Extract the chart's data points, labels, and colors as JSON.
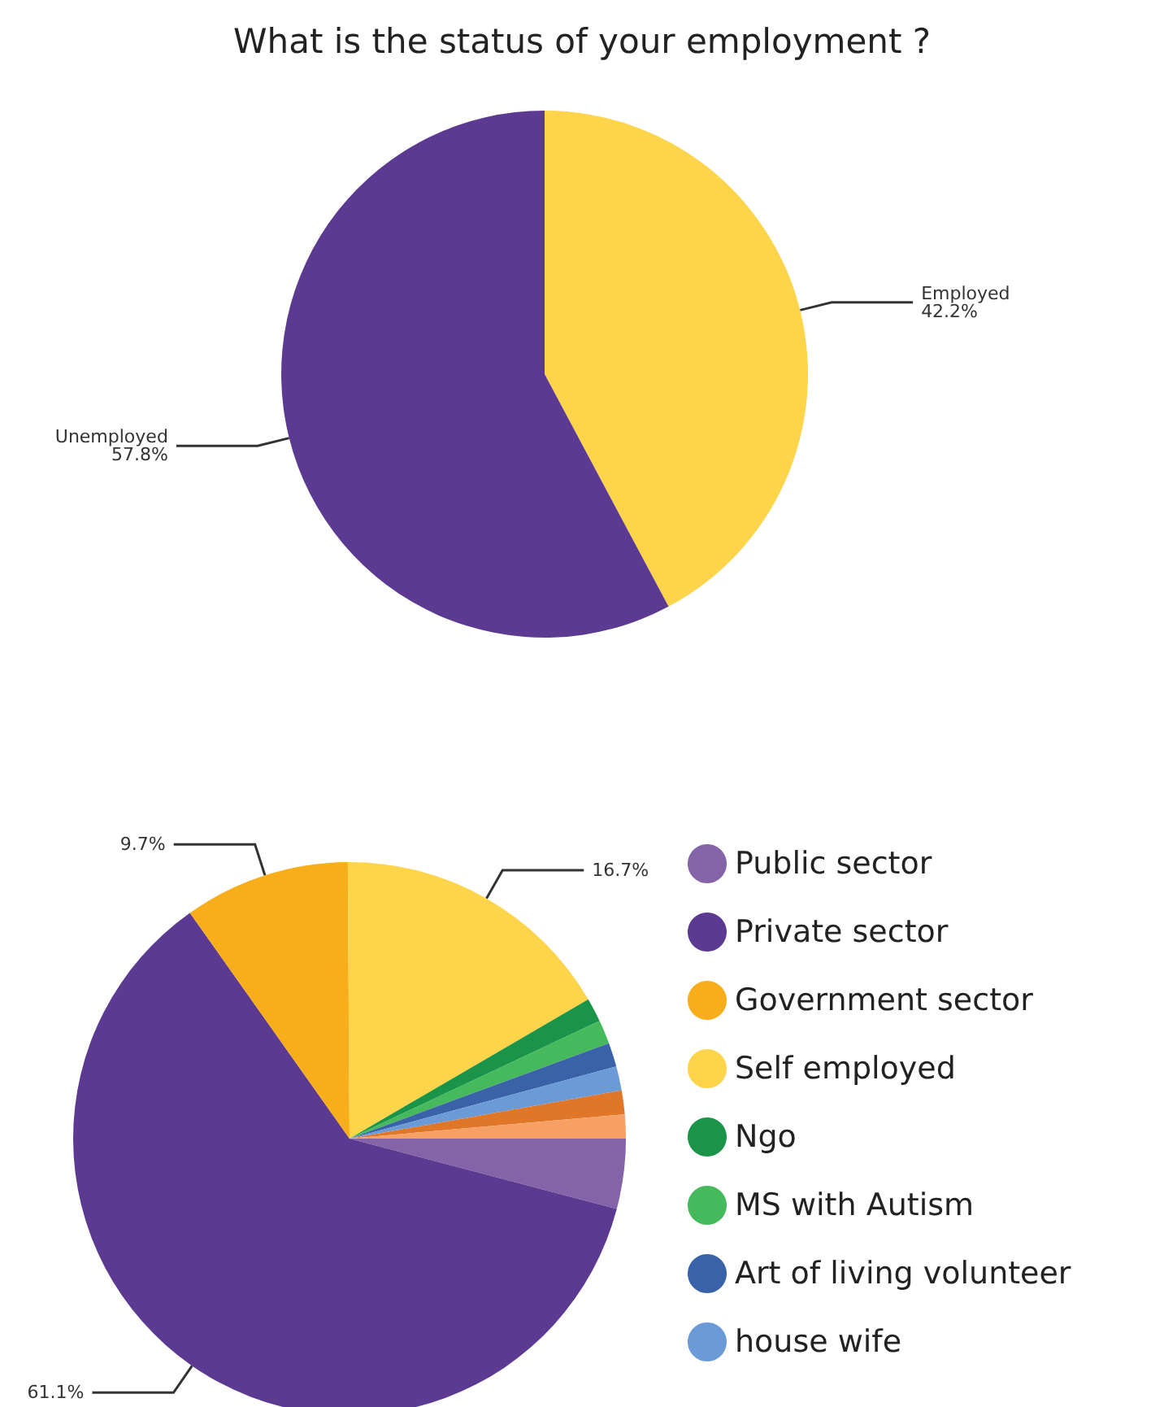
{
  "chart_data": [
    {
      "type": "pie",
      "title": "What is the status of your employment ?",
      "categories": [
        "Employed",
        "Unemployed"
      ],
      "values": [
        42.2,
        57.8
      ],
      "colors": [
        "#fdd44a",
        "#5c3a91"
      ],
      "value_labels": [
        "42.2%",
        "57.8%"
      ],
      "legend": false
    },
    {
      "type": "pie",
      "categories": [
        "Public sector",
        "Private sector",
        "Government sector",
        "Self employed",
        "Ngo",
        "MS with Autism",
        "Art of living volunteer",
        "house wife",
        null,
        null
      ],
      "values": [
        4.1,
        61.1,
        9.7,
        16.7,
        1.4,
        1.4,
        1.4,
        1.4,
        1.4,
        1.4
      ],
      "colors": [
        "#8463a8",
        "#5c3a91",
        "#f8ae1a",
        "#fdd44a",
        "#1a9448",
        "#45b95b",
        "#3a62a8",
        "#6b9bd6",
        "#e07628",
        "#f7a064"
      ],
      "value_labels": [
        null,
        "61.1%",
        "9.7%",
        "16.7%",
        null,
        null,
        null,
        null,
        null,
        null
      ],
      "legend": "right"
    }
  ]
}
